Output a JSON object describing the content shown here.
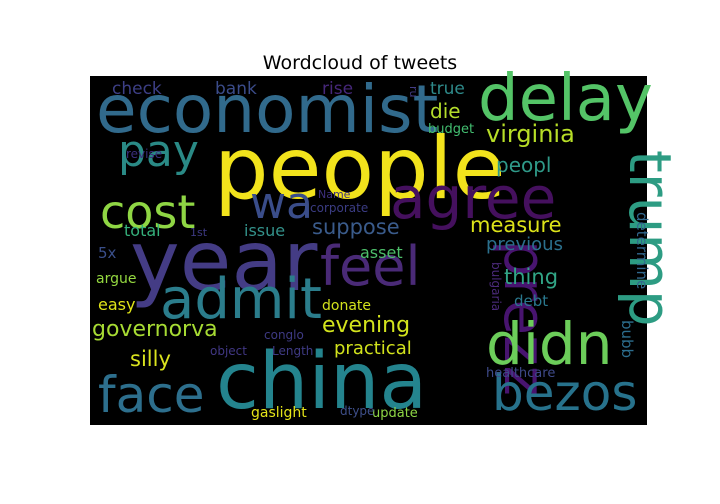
{
  "chart_data": {
    "type": "wordcloud",
    "title": "Wordcloud of tweets",
    "background": "#000000",
    "words": [
      {
        "text": "people",
        "weight": 1.0,
        "color": "#f2e31c"
      },
      {
        "text": "year",
        "weight": 0.97,
        "color": "#443c85"
      },
      {
        "text": "china",
        "weight": 0.95,
        "color": "#24848e"
      },
      {
        "text": "economist",
        "weight": 0.86,
        "color": "#316a8c"
      },
      {
        "text": "delay",
        "weight": 0.84,
        "color": "#54c467"
      },
      {
        "text": "agree",
        "weight": 0.8,
        "color": "#45105e"
      },
      {
        "text": "trump",
        "weight": 0.78,
        "color": "#2d9c83"
      },
      {
        "text": "prezz",
        "weight": 0.78,
        "color": "#48146f"
      },
      {
        "text": "didn",
        "weight": 0.76,
        "color": "#6ccd5a"
      },
      {
        "text": "admit",
        "weight": 0.72,
        "color": "#2b7d8c"
      },
      {
        "text": "feel",
        "weight": 0.7,
        "color": "#4a2a77"
      },
      {
        "text": "face",
        "weight": 0.66,
        "color": "#2d6f8d"
      },
      {
        "text": "bezos",
        "weight": 0.64,
        "color": "#27728c"
      },
      {
        "text": "cost",
        "weight": 0.6,
        "color": "#8fd644"
      },
      {
        "text": "pay",
        "weight": 0.58,
        "color": "#2a8a86"
      },
      {
        "text": "wa",
        "weight": 0.56,
        "color": "#3a4d8a"
      },
      {
        "text": "virginia",
        "weight": 0.42,
        "color": "#b7de27"
      },
      {
        "text": "governorva",
        "weight": 0.38,
        "color": "#a7db33"
      },
      {
        "text": "evening",
        "weight": 0.37,
        "color": "#d3e41d"
      },
      {
        "text": "measure",
        "weight": 0.36,
        "color": "#dce319"
      },
      {
        "text": "suppose",
        "weight": 0.36,
        "color": "#3a5b8b"
      },
      {
        "text": "thing",
        "weight": 0.36,
        "color": "#31a586"
      },
      {
        "text": "silly",
        "weight": 0.34,
        "color": "#dae31e"
      },
      {
        "text": "peopl",
        "weight": 0.34,
        "color": "#2f9a89"
      },
      {
        "text": "die",
        "weight": 0.34,
        "color": "#b4dd2b"
      },
      {
        "text": "practical",
        "weight": 0.3,
        "color": "#d1e21c"
      },
      {
        "text": "previous",
        "weight": 0.3,
        "color": "#2b708d"
      },
      {
        "text": "check",
        "weight": 0.28,
        "color": "#3d3f86"
      },
      {
        "text": "bank",
        "weight": 0.28,
        "color": "#3b4c8a"
      },
      {
        "text": "rise",
        "weight": 0.28,
        "color": "#46277a"
      },
      {
        "text": "true",
        "weight": 0.28,
        "color": "#2e8a8a"
      },
      {
        "text": "issue",
        "weight": 0.26,
        "color": "#33918a"
      },
      {
        "text": "asset",
        "weight": 0.26,
        "color": "#4dbf6a"
      },
      {
        "text": "total",
        "weight": 0.26,
        "color": "#35b07b"
      },
      {
        "text": "easy",
        "weight": 0.26,
        "color": "#e0e418"
      },
      {
        "text": "debt",
        "weight": 0.24,
        "color": "#2a788e"
      },
      {
        "text": "determine",
        "weight": 0.24,
        "color": "#31688e"
      },
      {
        "text": "bubb",
        "weight": 0.22,
        "color": "#2c6e8e"
      },
      {
        "text": "5x",
        "weight": 0.22,
        "color": "#3a4f8a"
      },
      {
        "text": "argue",
        "weight": 0.2,
        "color": "#94d840"
      },
      {
        "text": "donate",
        "weight": 0.2,
        "color": "#d3e21c"
      },
      {
        "text": "healthcare",
        "weight": 0.19,
        "color": "#3e4a89"
      },
      {
        "text": "update",
        "weight": 0.19,
        "color": "#8ed645"
      },
      {
        "text": "gaslight",
        "weight": 0.19,
        "color": "#e5e419"
      },
      {
        "text": "budget",
        "weight": 0.18,
        "color": "#43bf71"
      },
      {
        "text": "revise",
        "weight": 0.16,
        "color": "#3a2f7c"
      },
      {
        "text": "bulgaria",
        "weight": 0.16,
        "color": "#4b2a7a"
      },
      {
        "text": "corporate",
        "weight": 0.15,
        "color": "#3b3c83"
      },
      {
        "text": "conglo",
        "weight": 0.15,
        "color": "#3e3a84"
      },
      {
        "text": "Length",
        "weight": 0.15,
        "color": "#3f3b85"
      },
      {
        "text": "object",
        "weight": 0.14,
        "color": "#413784"
      },
      {
        "text": "dtype",
        "weight": 0.14,
        "color": "#3e4f8a"
      },
      {
        "text": "Name",
        "weight": 0.13,
        "color": "#3d2f7d"
      },
      {
        "text": "1st",
        "weight": 0.13,
        "color": "#3e3a84"
      },
      {
        "text": "ru",
        "weight": 0.13,
        "color": "#443d86"
      }
    ]
  }
}
